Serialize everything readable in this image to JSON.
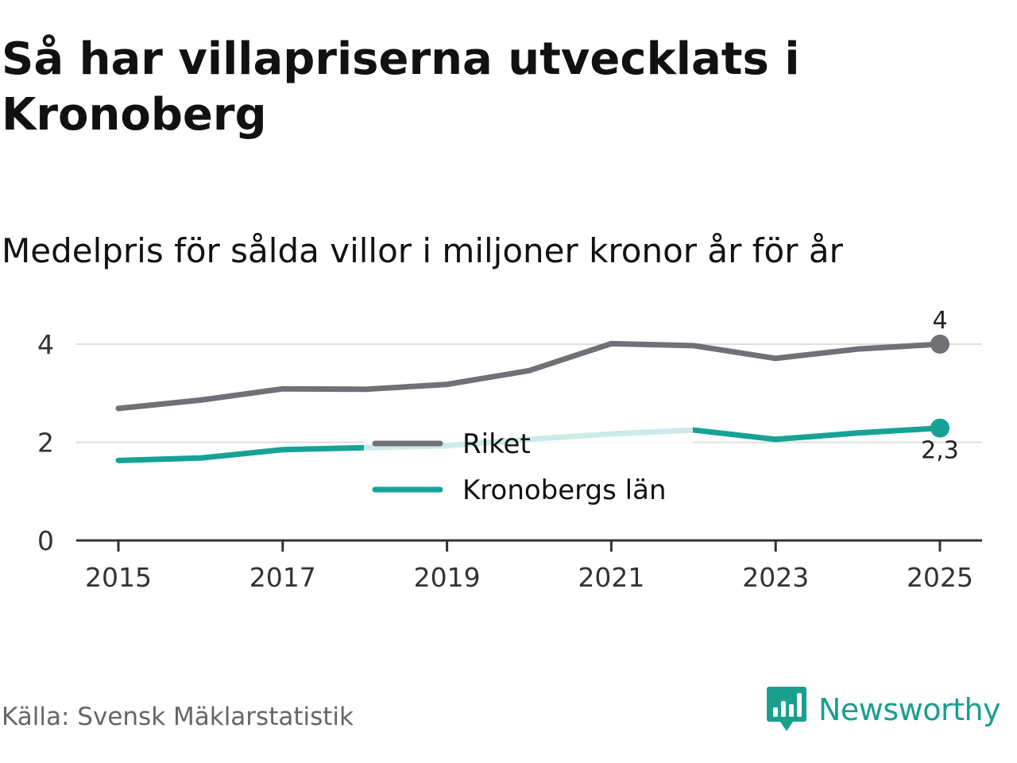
{
  "title": "Så har villapriserna utvecklats i Kronoberg",
  "subtitle": "Medelpris för sålda villor i miljoner kronor år för år",
  "source": "Källa: Svensk Mäklarstatistik",
  "brand": "Newsworthy",
  "chart_data": {
    "type": "line",
    "x": [
      2015,
      2016,
      2017,
      2018,
      2019,
      2020,
      2021,
      2022,
      2023,
      2024,
      2025
    ],
    "x_tick_labels": [
      "2015",
      "2017",
      "2019",
      "2021",
      "2023",
      "2025"
    ],
    "y_tick_labels": [
      "0",
      "2",
      "4"
    ],
    "ylim": [
      0,
      4.5
    ],
    "series": [
      {
        "name": "Riket",
        "color": "#727077",
        "values": [
          2.69,
          2.86,
          3.09,
          3.08,
          3.18,
          3.46,
          4.01,
          3.97,
          3.71,
          3.9,
          4.0
        ],
        "end_label": "4"
      },
      {
        "name": "Kronobergs län",
        "color": "#16a396",
        "values": [
          1.63,
          1.68,
          1.85,
          1.89,
          1.93,
          2.06,
          2.17,
          2.25,
          2.06,
          2.19,
          2.29
        ],
        "end_label": "2,3"
      }
    ],
    "legend": [
      "Riket",
      "Kronobergs län"
    ],
    "legend_position": "center",
    "grid": true
  }
}
